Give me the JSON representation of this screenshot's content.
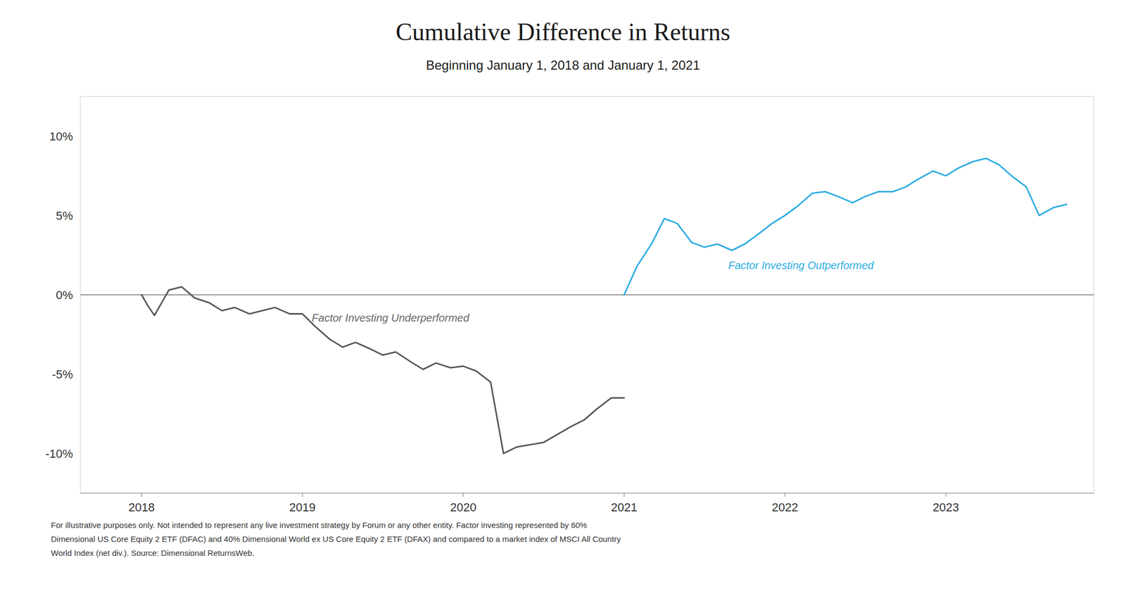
{
  "chart_data": {
    "type": "line",
    "title": "Cumulative Difference in Returns",
    "subtitle": "Beginning January 1, 2018 and January 1, 2021",
    "footnote": "For illustrative purposes only. Not intended to represent any live investment strategy by Forum or any other entity. Factor investing represented by 60%\nDimensional US Core Equity 2 ETF (DFAC) and 40% Dimensional World ex US Core Equity 2 ETF (DFAX) and compared to a market index of MSCI All Country\nWorld Index (net div.). Source: Dimensional ReturnsWeb.",
    "annotations": [
      {
        "text": "Factor Investing Underperformed",
        "color": "#666666"
      },
      {
        "text": "Factor Investing Outperformed",
        "color": "#29ABE2"
      }
    ],
    "series": [
      {
        "color": "#555555",
        "x": [
          2018.0,
          2018.04,
          2018.08,
          2018.17,
          2018.25,
          2018.33,
          2018.42,
          2018.5,
          2018.58,
          2018.67,
          2018.75,
          2018.83,
          2018.92,
          2019.0,
          2019.08,
          2019.17,
          2019.25,
          2019.33,
          2019.42,
          2019.5,
          2019.58,
          2019.67,
          2019.75,
          2019.83,
          2019.92,
          2020.0,
          2020.08,
          2020.17,
          2020.25,
          2020.33,
          2020.5,
          2020.67,
          2020.75,
          2020.83,
          2020.92,
          2021.0
        ],
        "values": [
          0.0,
          -0.007,
          -0.013,
          0.003,
          0.005,
          -0.002,
          -0.005,
          -0.01,
          -0.008,
          -0.012,
          -0.01,
          -0.008,
          -0.012,
          -0.012,
          -0.02,
          -0.028,
          -0.033,
          -0.03,
          -0.034,
          -0.038,
          -0.036,
          -0.042,
          -0.047,
          -0.043,
          -0.046,
          -0.045,
          -0.048,
          -0.055,
          -0.1,
          -0.096,
          -0.093,
          -0.083,
          -0.079,
          -0.072,
          -0.065,
          -0.065
        ]
      },
      {
        "color": "#29ABE2",
        "x": [
          2021.0,
          2021.08,
          2021.17,
          2021.25,
          2021.33,
          2021.42,
          2021.5,
          2021.58,
          2021.67,
          2021.75,
          2021.83,
          2021.92,
          2022.0,
          2022.08,
          2022.17,
          2022.25,
          2022.33,
          2022.42,
          2022.5,
          2022.58,
          2022.67,
          2022.75,
          2022.83,
          2022.92,
          2023.0,
          2023.08,
          2023.17,
          2023.25,
          2023.33,
          2023.42,
          2023.5,
          2023.58,
          2023.67,
          2023.75
        ],
        "values": [
          0.0,
          0.018,
          0.032,
          0.048,
          0.045,
          0.033,
          0.03,
          0.032,
          0.028,
          0.032,
          0.038,
          0.045,
          0.05,
          0.056,
          0.064,
          0.065,
          0.062,
          0.058,
          0.062,
          0.065,
          0.065,
          0.068,
          0.073,
          0.078,
          0.075,
          0.08,
          0.084,
          0.086,
          0.082,
          0.074,
          0.068,
          0.05,
          0.055,
          0.057
        ]
      }
    ],
    "xlim": [
      2017.62,
      2023.92
    ],
    "xticks": [
      2018,
      2019,
      2020,
      2021,
      2022,
      2023
    ],
    "ylim": [
      -0.125,
      0.125
    ],
    "yticks": [
      {
        "value": -0.1,
        "label": "-10%"
      },
      {
        "value": -0.05,
        "label": "-5%"
      },
      {
        "value": 0.0,
        "label": "0%"
      },
      {
        "value": 0.05,
        "label": "5%"
      },
      {
        "value": 0.1,
        "label": "10%"
      }
    ],
    "grid": false
  }
}
